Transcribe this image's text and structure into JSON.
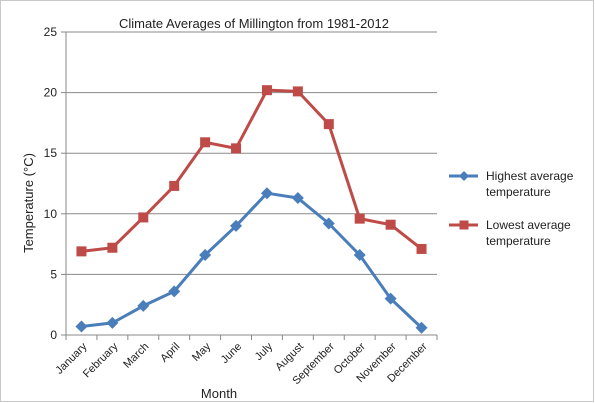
{
  "chart_data": {
    "type": "line",
    "title": "Climate Averages of Millington from 1981-2012",
    "xlabel": "Month",
    "ylabel": "Temperature (°C)",
    "ylim": [
      0,
      25
    ],
    "yticks": [
      0,
      5,
      10,
      15,
      20,
      25
    ],
    "grid": "horizontal",
    "legend": "right",
    "categories": [
      "January",
      "February",
      "March",
      "April",
      "May",
      "June",
      "July",
      "August",
      "September",
      "October",
      "November",
      "December"
    ],
    "series": [
      {
        "name": "Highest average temperature",
        "color": "#4a7ebb",
        "marker": "diamond",
        "values": [
          0.7,
          1.0,
          2.4,
          3.6,
          6.6,
          9.0,
          11.7,
          11.3,
          9.2,
          6.6,
          3.0,
          0.6
        ]
      },
      {
        "name": "Lowest average temperature",
        "color": "#be4b48",
        "marker": "square",
        "values": [
          6.9,
          7.2,
          9.7,
          12.3,
          15.9,
          15.4,
          20.2,
          20.1,
          17.4,
          9.6,
          9.1,
          7.1
        ]
      }
    ]
  }
}
